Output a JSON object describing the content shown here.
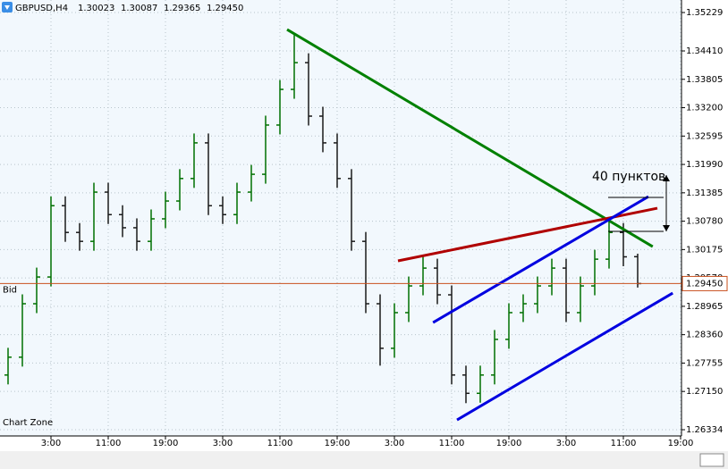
{
  "chart_data": {
    "type": "ohlc",
    "symbol": "GBPUSD,H4",
    "header_values": [
      "1.30023",
      "1.30087",
      "1.29365",
      "1.29450"
    ],
    "watermark": "Chart Zone",
    "annotation": "40 пунктов",
    "x": [
      -3,
      -1,
      1,
      3,
      5,
      7,
      9,
      11,
      13,
      15,
      17,
      19,
      21,
      23,
      25,
      27,
      29,
      31,
      33,
      35,
      37,
      39,
      41,
      43,
      45,
      47,
      49,
      51,
      53,
      55,
      57,
      59,
      61,
      63,
      65,
      67,
      69,
      71,
      73,
      75,
      77,
      79,
      81,
      83,
      85
    ],
    "open": [
      1.275,
      1.2788,
      1.2902,
      1.2959,
      1.3111,
      1.3054,
      1.3035,
      1.314,
      1.3092,
      1.3064,
      1.3035,
      1.3083,
      1.3121,
      1.3169,
      1.3245,
      1.3111,
      1.3092,
      1.314,
      1.3178,
      1.3283,
      1.3359,
      1.3416,
      1.3302,
      1.3245,
      1.3169,
      1.3035,
      1.2902,
      1.2807,
      1.2883,
      1.294,
      1.2978,
      1.2921,
      1.275,
      1.2711,
      1.275,
      1.2826,
      1.2883,
      1.2902,
      1.294,
      1.2978,
      1.2883,
      1.294,
      1.2997,
      1.3054,
      1.30023
    ],
    "high": [
      1.2808,
      1.2922,
      1.2979,
      1.3131,
      1.3131,
      1.3074,
      1.316,
      1.316,
      1.3112,
      1.3084,
      1.3103,
      1.3141,
      1.3189,
      1.3265,
      1.3265,
      1.3131,
      1.316,
      1.3198,
      1.3303,
      1.3379,
      1.3475,
      1.3436,
      1.3322,
      1.3265,
      1.3189,
      1.3055,
      1.2922,
      1.2903,
      1.296,
      1.3005,
      1.2998,
      1.2941,
      1.277,
      1.277,
      1.2846,
      1.2903,
      1.2922,
      1.296,
      1.2998,
      1.2998,
      1.296,
      1.3017,
      1.308,
      1.3074,
      1.30087
    ],
    "low": [
      1.273,
      1.2768,
      1.2882,
      1.2939,
      1.3034,
      1.3015,
      1.3015,
      1.3072,
      1.3044,
      1.3015,
      1.3015,
      1.3063,
      1.3101,
      1.3149,
      1.3091,
      1.3072,
      1.3072,
      1.312,
      1.3158,
      1.3263,
      1.3339,
      1.3282,
      1.3225,
      1.3149,
      1.3015,
      1.2882,
      1.277,
      1.2787,
      1.2863,
      1.292,
      1.2901,
      1.273,
      1.269,
      1.2691,
      1.273,
      1.2806,
      1.2863,
      1.2882,
      1.292,
      1.2863,
      1.2863,
      1.292,
      1.2977,
      1.2982,
      1.29365
    ],
    "close": [
      1.2788,
      1.2902,
      1.2959,
      1.3111,
      1.3054,
      1.3035,
      1.314,
      1.3092,
      1.3064,
      1.3035,
      1.3083,
      1.3121,
      1.3169,
      1.3245,
      1.3111,
      1.3092,
      1.314,
      1.3178,
      1.3283,
      1.3359,
      1.3416,
      1.3302,
      1.3245,
      1.3169,
      1.3035,
      1.2902,
      1.2807,
      1.2883,
      1.294,
      1.2978,
      1.2921,
      1.275,
      1.2711,
      1.275,
      1.2826,
      1.2883,
      1.2902,
      1.294,
      1.2978,
      1.2883,
      1.294,
      1.2997,
      1.3054,
      1.3002,
      1.2945
    ],
    "up_color": "#007000",
    "down_color": "#1a1a1a",
    "xlim": [
      -4.125,
      91.125
    ],
    "xticks": [
      {
        "value": 3,
        "label": "3:00"
      },
      {
        "value": 11,
        "label": "11:00"
      },
      {
        "value": 19,
        "label": "19:00"
      },
      {
        "value": 27,
        "label": "3:00"
      },
      {
        "value": 35,
        "label": "11:00"
      },
      {
        "value": 43,
        "label": "19:00"
      },
      {
        "value": 51,
        "label": "3:00"
      },
      {
        "value": 59,
        "label": "11:00"
      },
      {
        "value": 67,
        "label": "19:00"
      },
      {
        "value": 75,
        "label": "3:00"
      },
      {
        "value": 83,
        "label": "11:00"
      },
      {
        "value": 91,
        "label": "19:00"
      }
    ],
    "ylim": [
      1.26201,
      1.35496
    ],
    "yticks": [
      1.35229,
      {
        "value": 1.3441,
        "label": "1.34410"
      },
      1.33805,
      {
        "value": 1.332,
        "label": "1.33200"
      },
      1.32595,
      {
        "value": 1.3199,
        "label": "1.31990"
      },
      1.31385,
      {
        "value": 1.3078,
        "label": "1.30780"
      },
      1.30175,
      {
        "value": 1.2957,
        "label": "1.29570"
      },
      1.28965,
      {
        "value": 1.2836,
        "label": "1.28360"
      },
      1.27755,
      {
        "value": 1.2715,
        "label": "1.27150"
      },
      1.26334
    ],
    "grid": true,
    "bid": {
      "name": "Bid",
      "color": "#c8501e",
      "value": 1.2945,
      "label": "1.29450"
    },
    "trend_lines": [
      {
        "color": "#008000",
        "x": [
          36,
          87.1
        ],
        "y": [
          1.34867,
          1.30238
        ]
      },
      {
        "color": "#b00000",
        "x": [
          51.5,
          87.75
        ],
        "y": [
          1.29934,
          1.31057
        ]
      },
      {
        "color": "#0000e0",
        "x": [
          56.4,
          86.5
        ],
        "y": [
          1.28619,
          1.31305
        ]
      },
      {
        "color": "#0000e0",
        "x": [
          59.75,
          89.9
        ],
        "y": [
          1.26543,
          1.29248
        ]
      }
    ]
  }
}
